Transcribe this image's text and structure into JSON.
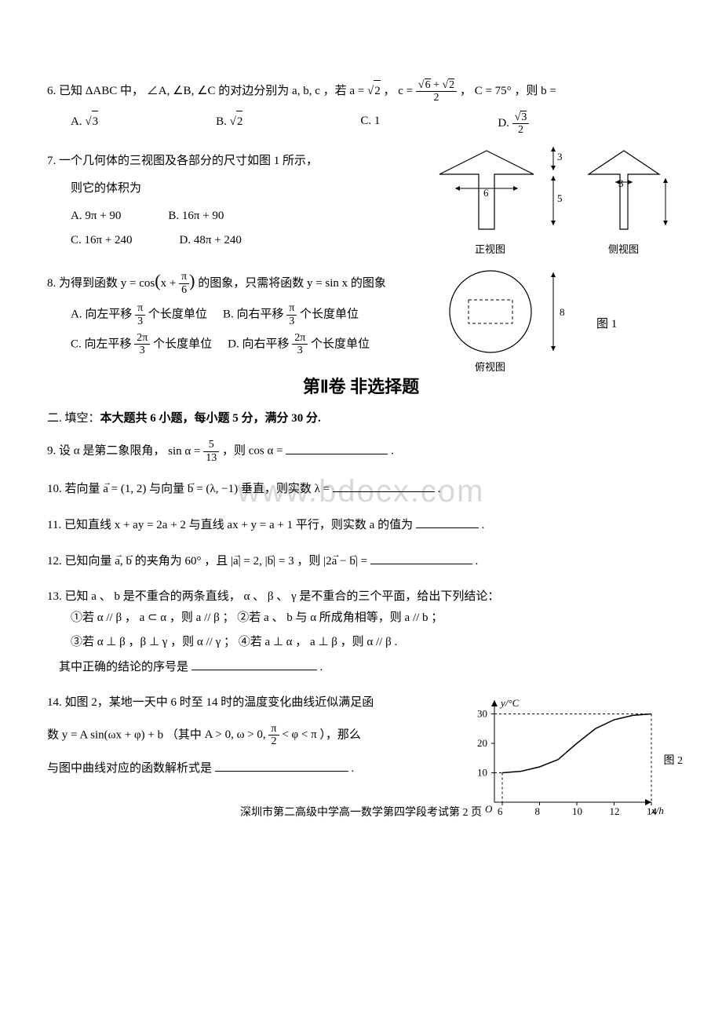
{
  "watermark": "www.bdocx.com",
  "q6": {
    "text_1": "6.  已知",
    "text_2": "中，",
    "text_3": "的对边分别为",
    "text_4": "，若",
    "text_5": "，",
    "text_6": "，",
    "text_7": "，则",
    "triangle": "ΔABC",
    "angles": "∠A, ∠B, ∠C",
    "sides": "a, b, c",
    "a_eq": "a = ",
    "a_val": "2",
    "c_eq": "c = ",
    "c_num_a": "6",
    "c_num_b": "2",
    "c_den": "2",
    "C_eq": "C = 75°",
    "b_eq": "b =",
    "options": {
      "A": "A.",
      "A_val": "3",
      "B": "B.",
      "B_val": "2",
      "C": "C.  1",
      "D": "D.",
      "D_num": "3",
      "D_den": "2"
    }
  },
  "q7": {
    "text": "7. 一个几何体的三视图及各部分的尺寸如图 1 所示，",
    "text2": "则它的体积为",
    "options": {
      "A": "A.  9π + 90",
      "B": "B.  16π + 90",
      "C": "C. 16π + 240",
      "D": "D. 48π + 240"
    },
    "figure": {
      "front_label": "正视图",
      "side_label": "侧视图",
      "top_label": "俯视图",
      "fig_label": "图 1",
      "dims": {
        "w6": "6",
        "h3": "3",
        "h5": "5",
        "w3": "3",
        "h8": "8"
      }
    }
  },
  "q8": {
    "text_1": "8. 为得到函数",
    "text_2": "的图象，只需将函数",
    "text_3": "的图象",
    "y1": "y = cos",
    "y1_arg_a": "x +",
    "y1_arg_num": "π",
    "y1_arg_den": "6",
    "y2": "y = sin x",
    "options": {
      "A": "A.  向左平移",
      "A_num": "π",
      "A_den": "3",
      "A_tail": "个长度单位",
      "B": "B.  向右平移",
      "B_num": "π",
      "B_den": "3",
      "B_tail": "个长度单位",
      "C": "C.  向左平移",
      "C_num": "2π",
      "C_den": "3",
      "C_tail": "个长度单位",
      "D": "D.  向右平移",
      "D_num": "2π",
      "D_den": "3",
      "D_tail": "个长度单位"
    }
  },
  "section2": {
    "title": "第Ⅱ卷    非选择题",
    "desc_1": "二. 填空：",
    "desc_2": "本大题共 6 小题，每小题 5 分，满分 30 分."
  },
  "q9": {
    "text_1": "9.  设",
    "text_2": "是第二象限角，",
    "text_3": "，则",
    "text_4": ".",
    "alpha": "α",
    "sin_eq": "sin α =",
    "sin_num": "5",
    "sin_den": "13",
    "cos_eq": "cos α ="
  },
  "q10": {
    "text_1": "10.  若向量",
    "text_2": "与向量",
    "text_3": "垂直，则实数",
    "text_4": ".",
    "a_eq": " = (1, 2)",
    "b_eq": " = (λ, −1)",
    "lambda_eq": "λ ="
  },
  "q11": {
    "text_1": "11. 已知直线",
    "text_2": "与直线",
    "text_3": "平行，则实数",
    "text_4": "的值为",
    "text_5": ".",
    "line1": "x + ay = 2a + 2",
    "line2": "ax + y = a + 1",
    "a": "a"
  },
  "q12": {
    "text_1": "12.  已知向量",
    "text_2": "的夹角为",
    "text_3": "，且",
    "text_4": "，则",
    "text_5": ".",
    "angle": "60°",
    "a_mag": " = 2,",
    "b_mag": " = 3",
    "expr": "="
  },
  "q13": {
    "text_1": "13.  已知",
    "text_2": "、",
    "text_3": "是不重合的两条直线，",
    "text_4": "、",
    "text_5": "、",
    "text_6": "是不重合的三个平面，给出下列结论：",
    "a": "a",
    "b": "b",
    "alpha": "α",
    "beta": "β",
    "gamma": "γ",
    "stmt1": "①若 α // β ， a ⊂ α ，则 a // β ；  ②若 a 、 b 与 α 所成角相等，则 a // b ；",
    "stmt2": "③若 α ⊥ β ，β ⊥ γ ，则 α // γ ；  ④若 a ⊥ α ， a ⊥ β ，则 α // β .",
    "tail": "其中正确的结论的序号是",
    "tail_2": "."
  },
  "q14": {
    "text_1": "14.  如图 2，某地一天中 6 时至 14 时的温度变化曲线近似满足函",
    "text_2": "数",
    "text_3": "（其中",
    "text_4": "），那么",
    "text_5": "与图中曲线对应的函数解析式是",
    "text_6": ".",
    "func": "y = A sin(ωx + φ) + b",
    "cond_1": "A > 0, ω > 0,",
    "cond_num": "π",
    "cond_den": "2",
    "cond_2": "< φ < π",
    "fig_label": "图 2",
    "chart": {
      "ylabel": "y/°C",
      "xlabel": "x/h",
      "origin": "O",
      "yticks": [
        "10",
        "20",
        "30"
      ],
      "xticks": [
        "6",
        "8",
        "10",
        "12",
        "14"
      ],
      "xmin": 6,
      "xmax": 14,
      "ymin": 0,
      "ymax": 32,
      "curve_points": [
        [
          6,
          10
        ],
        [
          7,
          10.5
        ],
        [
          8,
          12
        ],
        [
          9,
          14.5
        ],
        [
          10,
          20
        ],
        [
          11,
          25
        ],
        [
          12,
          28
        ],
        [
          13,
          29.5
        ],
        [
          14,
          30
        ]
      ]
    }
  },
  "footer": "深圳市第二高级中学高一数学第四学段考试第 2 页"
}
